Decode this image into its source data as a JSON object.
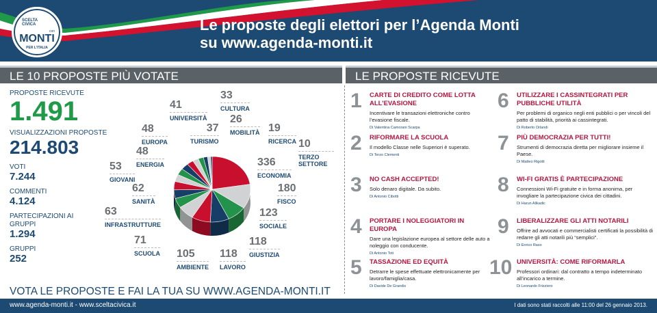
{
  "header": {
    "logo_text": [
      "SCELTA CIVICA",
      "con",
      "MONTI",
      "PER L'ITALIA"
    ],
    "title_line1": "Le proposte degli elettori per l’Agenda Monti",
    "title_line2": "su www.agenda-monti.it",
    "flag_colors": [
      "#1f9a48",
      "#ffffff",
      "#d2122e"
    ]
  },
  "left": {
    "heading": "LE 10 PROPOSTE PIÙ VOTATE",
    "stats": [
      {
        "label": "PROPOSTE RICEVUTE",
        "value": "1.491"
      },
      {
        "label": "VISUALIZZAZIONI PROPOSTE",
        "value": "214.803"
      },
      {
        "label": "VOTI",
        "value": "7.244"
      },
      {
        "label": "COMMENTI",
        "value": "4.124"
      },
      {
        "label": "PARTECIPAZIONI AI GRUPPI",
        "value": "1.294"
      },
      {
        "label": "GRUPPI",
        "value": "252"
      }
    ]
  },
  "chart_data": {
    "type": "pie",
    "title": "",
    "categories": [
      "ECONOMIA",
      "FISCO",
      "SOCIALE",
      "GIUSTIZIA",
      "LAVORO",
      "AMBIENTE",
      "SCUOLA",
      "INFRASTRUTTURE",
      "SANITÀ",
      "GIOVANI",
      "ENERGIA",
      "EUROPA",
      "UNIVERSITÀ",
      "TURISMO",
      "CULTURA",
      "MOBILITÀ",
      "RICERCA",
      "TERZO SETTORE"
    ],
    "values": [
      336,
      180,
      123,
      118,
      118,
      105,
      71,
      63,
      62,
      53,
      48,
      48,
      41,
      37,
      33,
      26,
      19,
      10
    ],
    "colors": [
      "#c8102e",
      "#d0d2d4",
      "#23924a",
      "#173e66",
      "#c8102e",
      "#d0d2d4",
      "#23924a",
      "#173e66",
      "#c8102e",
      "#d0d2d4",
      "#23924a",
      "#173e66",
      "#c8102e",
      "#d0d2d4",
      "#23924a",
      "#173e66",
      "#d0d2d4",
      "#173e66"
    ]
  },
  "right": {
    "heading": "LE PROPOSTE RICEVUTE",
    "proposals": [
      {
        "n": "1",
        "title": "CARTE DI CREDITO COME LOTTA ALL’EVASIONE",
        "desc": "Incentivare le transazioni elettroniche contro l’evasione fiscale.",
        "author": "Di Valentina Camorani Scarpa"
      },
      {
        "n": "2",
        "title": "RIFORMARE LA SCUOLA",
        "desc": "Il modello Classe nelle Superiori è superato.",
        "author": "Di Terzo Clementi"
      },
      {
        "n": "3",
        "title": "NO CASH ACCEPTED!",
        "desc": "Solo denaro digitale. Da subito.",
        "author": "Di Antonio Cibotti"
      },
      {
        "n": "4",
        "title": "PORTARE I NOLEGGIATORI IN EUROPA",
        "desc": "Dare una legislazione europea al settore delle auto a noleggio con conducente.",
        "author": "Di Antonio Toti"
      },
      {
        "n": "5",
        "title": "TASSAZIONE ED EQUITÀ",
        "desc": "Detrarre le spese effettuate elettronicamente per lavoro/famiglia/casa.",
        "author": "Di Davide De Grandis"
      },
      {
        "n": "6",
        "title": "UTILIZZARE I CASSINTEGRATI PER PUBBLICHE UTILITÀ",
        "desc": "Per problemi di organico negli enti pubblici o per vincoli del patto di stabilità, priorità ai cassintegrati.",
        "author": "Di Roberto Orlandi"
      },
      {
        "n": "7",
        "title": "PIÙ DEMOCRAZIA PER TUTTI!",
        "desc": "Strumenti di democrazia diretta per migliorare insieme il Paese.",
        "author": "Di Matteo Rigotti"
      },
      {
        "n": "8",
        "title": "WI-FI GRATIS È PARTECIPAZIONE",
        "desc": "Connessioni Wi-Fi gratuite e in forma anonima, per invogliare la partecipazione civica dei cittadini.",
        "author": "Di Harun Alikadic"
      },
      {
        "n": "9",
        "title": "LIBERALIZZARE GLI ATTI NOTARILI",
        "desc": "Offrire ad avvocati e commercialisti certificati la possibilità di redarre gli atti notarili più “semplici”.",
        "author": "Di Enrico Raso"
      },
      {
        "n": "10",
        "title": "UNIVERSITÀ: COME RIFORMARLA",
        "desc": "Professori ordinari: dal contratto a tempo indeterminato all’incarico a termine.",
        "author": "Di Leonardo Frizziero"
      }
    ]
  },
  "slogan": "VOTA LE PROPOSTE E FAI LA TUA SU WWW.AGENDA-MONTI.IT",
  "footer": {
    "links": "www.agenda-monti.it - www.sceltacivica.it",
    "note": "I dati sono stati raccolti alle 11:00 del 26 gennaio 2013."
  }
}
